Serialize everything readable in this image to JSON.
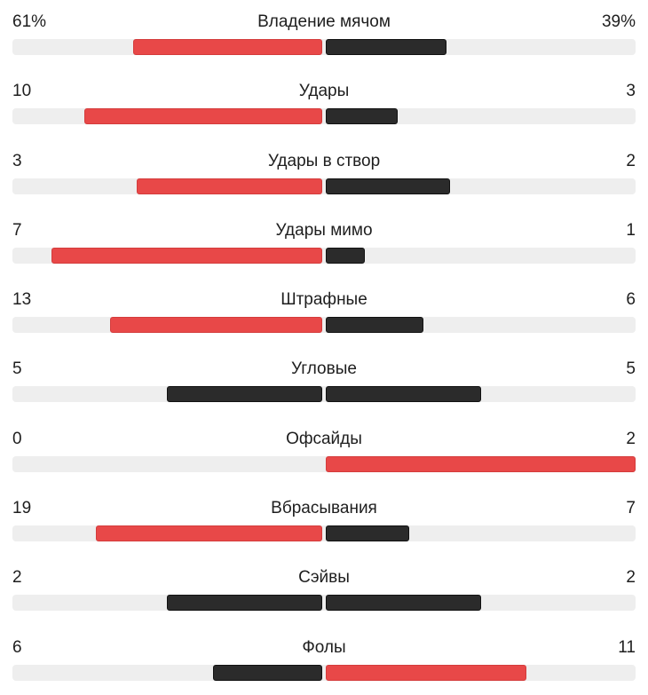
{
  "colors": {
    "leading": "#e84848",
    "trailing": "#2b2b2b",
    "track": "#eeeeee",
    "text": "#1e1e1e"
  },
  "stats": [
    {
      "name": "Владение мячом",
      "left": "61%",
      "right": "39%",
      "left_share": 0.61,
      "right_share": 0.39
    },
    {
      "name": "Удары",
      "left": "10",
      "right": "3",
      "left_share": 0.769,
      "right_share": 0.231
    },
    {
      "name": "Удары в створ",
      "left": "3",
      "right": "2",
      "left_share": 0.6,
      "right_share": 0.4
    },
    {
      "name": "Удары мимо",
      "left": "7",
      "right": "1",
      "left_share": 0.875,
      "right_share": 0.125
    },
    {
      "name": "Штрафные",
      "left": "13",
      "right": "6",
      "left_share": 0.684,
      "right_share": 0.316
    },
    {
      "name": "Угловые",
      "left": "5",
      "right": "5",
      "left_share": 0.5,
      "right_share": 0.5
    },
    {
      "name": "Офсайды",
      "left": "0",
      "right": "2",
      "left_share": 0.0,
      "right_share": 1.0
    },
    {
      "name": "Вбрасывания",
      "left": "19",
      "right": "7",
      "left_share": 0.731,
      "right_share": 0.269
    },
    {
      "name": "Сэйвы",
      "left": "2",
      "right": "2",
      "left_share": 0.5,
      "right_share": 0.5
    },
    {
      "name": "Фолы",
      "left": "6",
      "right": "11",
      "left_share": 0.353,
      "right_share": 0.647
    }
  ]
}
